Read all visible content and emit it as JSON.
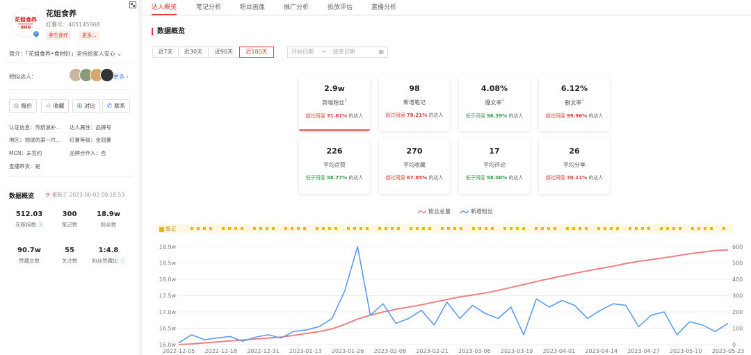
{
  "profile": {
    "name": "花姐食养",
    "red_id": "红薯号：405145968",
    "avatar_text_1": "花姐食养",
    "avatar_text_2": "· 食材好 ·",
    "tags": [
      "养生食疗",
      "更多..."
    ],
    "intro": "简介：「花姐食养•食材好」坚持给家人安心",
    "similar_label": "相似达人：",
    "more_label": "更多 ›",
    "actions": [
      {
        "icon": "⊙",
        "label": "报价"
      },
      {
        "icon": "☆",
        "label": "收藏"
      },
      {
        "icon": "⊞",
        "label": "对比"
      },
      {
        "icon": "✆",
        "label": "联系"
      }
    ],
    "meta": {
      "cert": "认证信息：传统滋补...",
      "attr": "达人属性：品牌号",
      "region": "地区：地球的某一片...",
      "level": "红薯等级：金冠薯",
      "mcn": "MCN：未签约",
      "brand": "品牌合作人：否",
      "live": "直播带货：是"
    }
  },
  "overview": {
    "title": "数据概览",
    "updated": "更新于 2023-06-02 00:18:53",
    "stats": [
      {
        "value": "512.03",
        "label": "灰豚指数"
      },
      {
        "value": "300",
        "label": "笔记数"
      },
      {
        "value": "18.9w",
        "label": "粉丝数"
      },
      {
        "value": "90.7w",
        "label": "赞藏总数"
      },
      {
        "value": "55",
        "label": "关注数"
      },
      {
        "value": "1:4.8",
        "label": "粉丝赞藏比"
      }
    ]
  },
  "tabs": [
    "达人概览",
    "笔记分析",
    "粉丝画像",
    "推广分析",
    "投放评估",
    "直播分析"
  ],
  "main": {
    "section_title": "数据概览",
    "ranges": [
      "近7天",
      "近30天",
      "近90天",
      "近180天"
    ],
    "date_start": "开始日期",
    "date_arrow": "→",
    "date_end": "结束日期",
    "cards": [
      {
        "value": "2.9w",
        "label": "新增粉丝",
        "cmp": "超过同层",
        "pct": "71.61%",
        "suffix": "的达人",
        "dir": "up",
        "q": "?"
      },
      {
        "value": "98",
        "label": "新增笔记",
        "cmp": "超过同层",
        "pct": "79.21%",
        "suffix": "的达人",
        "dir": "up",
        "q": ""
      },
      {
        "value": "4.08%",
        "label": "爆文率",
        "cmp": "低于同层",
        "pct": "56.39%",
        "suffix": "的达人",
        "dir": "down",
        "q": "?"
      },
      {
        "value": "6.12%",
        "label": "删文率",
        "cmp": "超过同层",
        "pct": "99.96%",
        "suffix": "的达人",
        "dir": "up",
        "q": "?"
      },
      {
        "value": "226",
        "label": "平均点赞",
        "cmp": "低于同层",
        "pct": "58.77%",
        "suffix": "的达人",
        "dir": "down",
        "q": ""
      },
      {
        "value": "270",
        "label": "平均收藏",
        "cmp": "超过同层",
        "pct": "67.85%",
        "suffix": "的达人",
        "dir": "up",
        "q": ""
      },
      {
        "value": "17",
        "label": "平均评论",
        "cmp": "低于同层",
        "pct": "58.00%",
        "suffix": "的达人",
        "dir": "down",
        "q": ""
      },
      {
        "value": "26",
        "label": "平均分享",
        "cmp": "超过同层",
        "pct": "70.11%",
        "suffix": "的达人",
        "dir": "up",
        "q": ""
      }
    ],
    "notes_label": "笔记"
  },
  "colors": {
    "accent": "#e53935",
    "total_line": "#f08080",
    "new_line": "#5b9bf0",
    "notes": "#f5b400"
  },
  "chart_data": {
    "type": "line",
    "legend": [
      "粉丝总量",
      "新增粉丝"
    ],
    "x_ticks": [
      "2022-12-05",
      "2022-12-18",
      "2022-12-31",
      "2023-01-13",
      "2023-01-26",
      "2023-02-08",
      "2023-02-21",
      "2023-03-06",
      "2023-03-19",
      "2023-04-01",
      "2023-04-14",
      "2023-04-27",
      "2023-05-10",
      "2023-05-23"
    ],
    "y_left_ticks": [
      "16.0w",
      "16.5w",
      "17.0w",
      "17.5w",
      "18.0w",
      "18.5w",
      "18.9w"
    ],
    "y_right_ticks": [
      "0",
      "100",
      "200",
      "300",
      "400",
      "500",
      "600"
    ],
    "ylim_left": [
      16.0,
      19.0
    ],
    "ylim_right": [
      0,
      600
    ],
    "series": [
      {
        "name": "粉丝总量",
        "axis": "left",
        "values": [
          16.0,
          16.02,
          16.05,
          16.08,
          16.11,
          16.14,
          16.17,
          16.2,
          16.23,
          16.28,
          16.34,
          16.4,
          16.48,
          16.62,
          16.78,
          16.9,
          17.0,
          17.08,
          17.15,
          17.22,
          17.3,
          17.38,
          17.46,
          17.52,
          17.58,
          17.66,
          17.75,
          17.84,
          17.93,
          18.02,
          18.1,
          18.18,
          18.26,
          18.33,
          18.4,
          18.48,
          18.55,
          18.6,
          18.66,
          18.72,
          18.78,
          18.83,
          18.88,
          18.9
        ]
      },
      {
        "name": "新增粉丝",
        "axis": "right",
        "values": [
          10,
          60,
          30,
          40,
          50,
          20,
          45,
          60,
          40,
          80,
          90,
          110,
          160,
          330,
          600,
          180,
          250,
          130,
          160,
          210,
          120,
          260,
          160,
          240,
          190,
          160,
          230,
          60,
          280,
          230,
          270,
          240,
          160,
          210,
          250,
          240,
          110,
          180,
          200,
          60,
          140,
          120,
          80,
          130
        ]
      }
    ]
  }
}
